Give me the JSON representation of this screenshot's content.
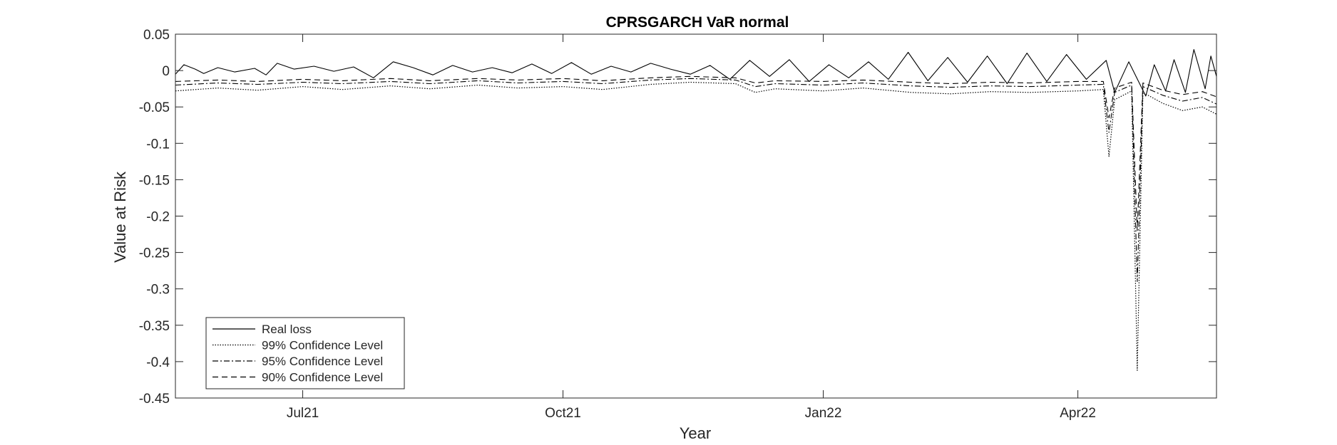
{
  "chart_data": {
    "type": "line",
    "title": "CPRSGARCH VaR normal",
    "xlabel": "Year",
    "ylabel": "Value at Risk",
    "ylim": [
      -0.45,
      0.05
    ],
    "yticks": [
      "0.05",
      "0",
      "-0.05",
      "-0.1",
      "-0.15",
      "-0.2",
      "-0.25",
      "-0.3",
      "-0.35",
      "-0.4",
      "-0.45"
    ],
    "x_start": "2021-05-17",
    "x_end": "2022-05-20",
    "xticks": [
      {
        "date": "2021-07-01",
        "label": "Jul21"
      },
      {
        "date": "2021-10-01",
        "label": "Oct21"
      },
      {
        "date": "2022-01-01",
        "label": "Jan22"
      },
      {
        "date": "2022-04-01",
        "label": "Apr22"
      }
    ],
    "grid": false,
    "legend_position": "bottom-left",
    "series": [
      {
        "name": "Real loss",
        "style": "solid",
        "color": "#000000",
        "points": [
          [
            "2021-05-17",
            -0.005
          ],
          [
            "2021-05-20",
            0.008
          ],
          [
            "2021-05-24",
            0.002
          ],
          [
            "2021-05-27",
            -0.004
          ],
          [
            "2021-06-01",
            0.004
          ],
          [
            "2021-06-07",
            -0.002
          ],
          [
            "2021-06-14",
            0.003
          ],
          [
            "2021-06-18",
            -0.006
          ],
          [
            "2021-06-22",
            0.01
          ],
          [
            "2021-06-28",
            0.002
          ],
          [
            "2021-07-05",
            0.006
          ],
          [
            "2021-07-12",
            -0.001
          ],
          [
            "2021-07-19",
            0.005
          ],
          [
            "2021-07-26",
            -0.01
          ],
          [
            "2021-08-02",
            0.012
          ],
          [
            "2021-08-09",
            0.004
          ],
          [
            "2021-08-16",
            -0.006
          ],
          [
            "2021-08-23",
            0.007
          ],
          [
            "2021-08-30",
            -0.002
          ],
          [
            "2021-09-06",
            0.004
          ],
          [
            "2021-09-13",
            -0.003
          ],
          [
            "2021-09-20",
            0.009
          ],
          [
            "2021-09-27",
            -0.004
          ],
          [
            "2021-10-04",
            0.011
          ],
          [
            "2021-10-11",
            -0.005
          ],
          [
            "2021-10-18",
            0.006
          ],
          [
            "2021-10-25",
            -0.002
          ],
          [
            "2021-11-01",
            0.01
          ],
          [
            "2021-11-08",
            0.002
          ],
          [
            "2021-11-15",
            -0.005
          ],
          [
            "2021-11-22",
            0.007
          ],
          [
            "2021-11-29",
            -0.012
          ],
          [
            "2021-12-06",
            0.014
          ],
          [
            "2021-12-13",
            -0.008
          ],
          [
            "2021-12-20",
            0.015
          ],
          [
            "2021-12-27",
            -0.015
          ],
          [
            "2022-01-03",
            0.008
          ],
          [
            "2022-01-10",
            -0.01
          ],
          [
            "2022-01-17",
            0.012
          ],
          [
            "2022-01-24",
            -0.012
          ],
          [
            "2022-01-31",
            0.025
          ],
          [
            "2022-02-07",
            -0.014
          ],
          [
            "2022-02-14",
            0.018
          ],
          [
            "2022-02-21",
            -0.016
          ],
          [
            "2022-02-28",
            0.02
          ],
          [
            "2022-03-07",
            -0.018
          ],
          [
            "2022-03-14",
            0.024
          ],
          [
            "2022-03-21",
            -0.015
          ],
          [
            "2022-03-28",
            0.022
          ],
          [
            "2022-04-04",
            -0.012
          ],
          [
            "2022-04-11",
            0.014
          ],
          [
            "2022-04-14",
            -0.03
          ],
          [
            "2022-04-19",
            0.012
          ],
          [
            "2022-04-25",
            -0.035
          ],
          [
            "2022-04-28",
            0.008
          ],
          [
            "2022-05-02",
            -0.028
          ],
          [
            "2022-05-05",
            0.015
          ],
          [
            "2022-05-09",
            -0.03
          ],
          [
            "2022-05-12",
            0.029
          ],
          [
            "2022-05-16",
            -0.025
          ],
          [
            "2022-05-18",
            0.02
          ],
          [
            "2022-05-20",
            -0.008
          ]
        ]
      },
      {
        "name": "99% Confidence Level",
        "style": "dotted",
        "color": "#000000",
        "points": [
          [
            "2021-05-17",
            -0.028
          ],
          [
            "2021-06-01",
            -0.024
          ],
          [
            "2021-06-15",
            -0.027
          ],
          [
            "2021-07-01",
            -0.022
          ],
          [
            "2021-07-15",
            -0.026
          ],
          [
            "2021-08-01",
            -0.021
          ],
          [
            "2021-08-15",
            -0.025
          ],
          [
            "2021-09-01",
            -0.02
          ],
          [
            "2021-09-15",
            -0.024
          ],
          [
            "2021-10-01",
            -0.022
          ],
          [
            "2021-10-15",
            -0.026
          ],
          [
            "2021-11-01",
            -0.019
          ],
          [
            "2021-11-15",
            -0.016
          ],
          [
            "2021-12-01",
            -0.018
          ],
          [
            "2021-12-08",
            -0.03
          ],
          [
            "2021-12-15",
            -0.025
          ],
          [
            "2022-01-01",
            -0.028
          ],
          [
            "2022-01-15",
            -0.024
          ],
          [
            "2022-02-01",
            -0.03
          ],
          [
            "2022-02-15",
            -0.032
          ],
          [
            "2022-03-01",
            -0.029
          ],
          [
            "2022-03-15",
            -0.03
          ],
          [
            "2022-04-01",
            -0.028
          ],
          [
            "2022-04-10",
            -0.026
          ],
          [
            "2022-04-12",
            -0.118
          ],
          [
            "2022-04-14",
            -0.04
          ],
          [
            "2022-04-20",
            -0.028
          ],
          [
            "2022-04-22",
            -0.412
          ],
          [
            "2022-04-24",
            -0.03
          ],
          [
            "2022-05-01",
            -0.045
          ],
          [
            "2022-05-08",
            -0.055
          ],
          [
            "2022-05-15",
            -0.05
          ],
          [
            "2022-05-20",
            -0.06
          ]
        ]
      },
      {
        "name": "95% Confidence Level",
        "style": "dashdot",
        "color": "#000000",
        "points": [
          [
            "2021-05-17",
            -0.02
          ],
          [
            "2021-06-01",
            -0.017
          ],
          [
            "2021-06-15",
            -0.019
          ],
          [
            "2021-07-01",
            -0.016
          ],
          [
            "2021-07-15",
            -0.018
          ],
          [
            "2021-08-01",
            -0.015
          ],
          [
            "2021-08-15",
            -0.018
          ],
          [
            "2021-09-01",
            -0.014
          ],
          [
            "2021-09-15",
            -0.017
          ],
          [
            "2021-10-01",
            -0.015
          ],
          [
            "2021-10-15",
            -0.018
          ],
          [
            "2021-11-01",
            -0.013
          ],
          [
            "2021-11-15",
            -0.011
          ],
          [
            "2021-12-01",
            -0.013
          ],
          [
            "2021-12-08",
            -0.022
          ],
          [
            "2021-12-15",
            -0.018
          ],
          [
            "2022-01-01",
            -0.02
          ],
          [
            "2022-01-15",
            -0.017
          ],
          [
            "2022-02-01",
            -0.021
          ],
          [
            "2022-02-15",
            -0.023
          ],
          [
            "2022-03-01",
            -0.021
          ],
          [
            "2022-03-15",
            -0.022
          ],
          [
            "2022-04-01",
            -0.02
          ],
          [
            "2022-04-10",
            -0.019
          ],
          [
            "2022-04-12",
            -0.085
          ],
          [
            "2022-04-14",
            -0.03
          ],
          [
            "2022-04-20",
            -0.02
          ],
          [
            "2022-04-22",
            -0.29
          ],
          [
            "2022-04-24",
            -0.022
          ],
          [
            "2022-05-01",
            -0.034
          ],
          [
            "2022-05-08",
            -0.042
          ],
          [
            "2022-05-15",
            -0.037
          ],
          [
            "2022-05-20",
            -0.046
          ]
        ]
      },
      {
        "name": "90% Confidence Level",
        "style": "dashed",
        "color": "#000000",
        "points": [
          [
            "2021-05-17",
            -0.015
          ],
          [
            "2021-06-01",
            -0.013
          ],
          [
            "2021-06-15",
            -0.015
          ],
          [
            "2021-07-01",
            -0.012
          ],
          [
            "2021-07-15",
            -0.014
          ],
          [
            "2021-08-01",
            -0.011
          ],
          [
            "2021-08-15",
            -0.014
          ],
          [
            "2021-09-01",
            -0.011
          ],
          [
            "2021-09-15",
            -0.013
          ],
          [
            "2021-10-01",
            -0.011
          ],
          [
            "2021-10-15",
            -0.014
          ],
          [
            "2021-11-01",
            -0.01
          ],
          [
            "2021-11-15",
            -0.008
          ],
          [
            "2021-12-01",
            -0.01
          ],
          [
            "2021-12-08",
            -0.017
          ],
          [
            "2021-12-15",
            -0.014
          ],
          [
            "2022-01-01",
            -0.015
          ],
          [
            "2022-01-15",
            -0.013
          ],
          [
            "2022-02-01",
            -0.016
          ],
          [
            "2022-02-15",
            -0.018
          ],
          [
            "2022-03-01",
            -0.016
          ],
          [
            "2022-03-15",
            -0.017
          ],
          [
            "2022-04-01",
            -0.015
          ],
          [
            "2022-04-10",
            -0.015
          ],
          [
            "2022-04-12",
            -0.065
          ],
          [
            "2022-04-14",
            -0.024
          ],
          [
            "2022-04-20",
            -0.016
          ],
          [
            "2022-04-22",
            -0.22
          ],
          [
            "2022-04-24",
            -0.017
          ],
          [
            "2022-05-01",
            -0.027
          ],
          [
            "2022-05-08",
            -0.033
          ],
          [
            "2022-05-15",
            -0.029
          ],
          [
            "2022-05-20",
            -0.036
          ]
        ]
      }
    ]
  }
}
